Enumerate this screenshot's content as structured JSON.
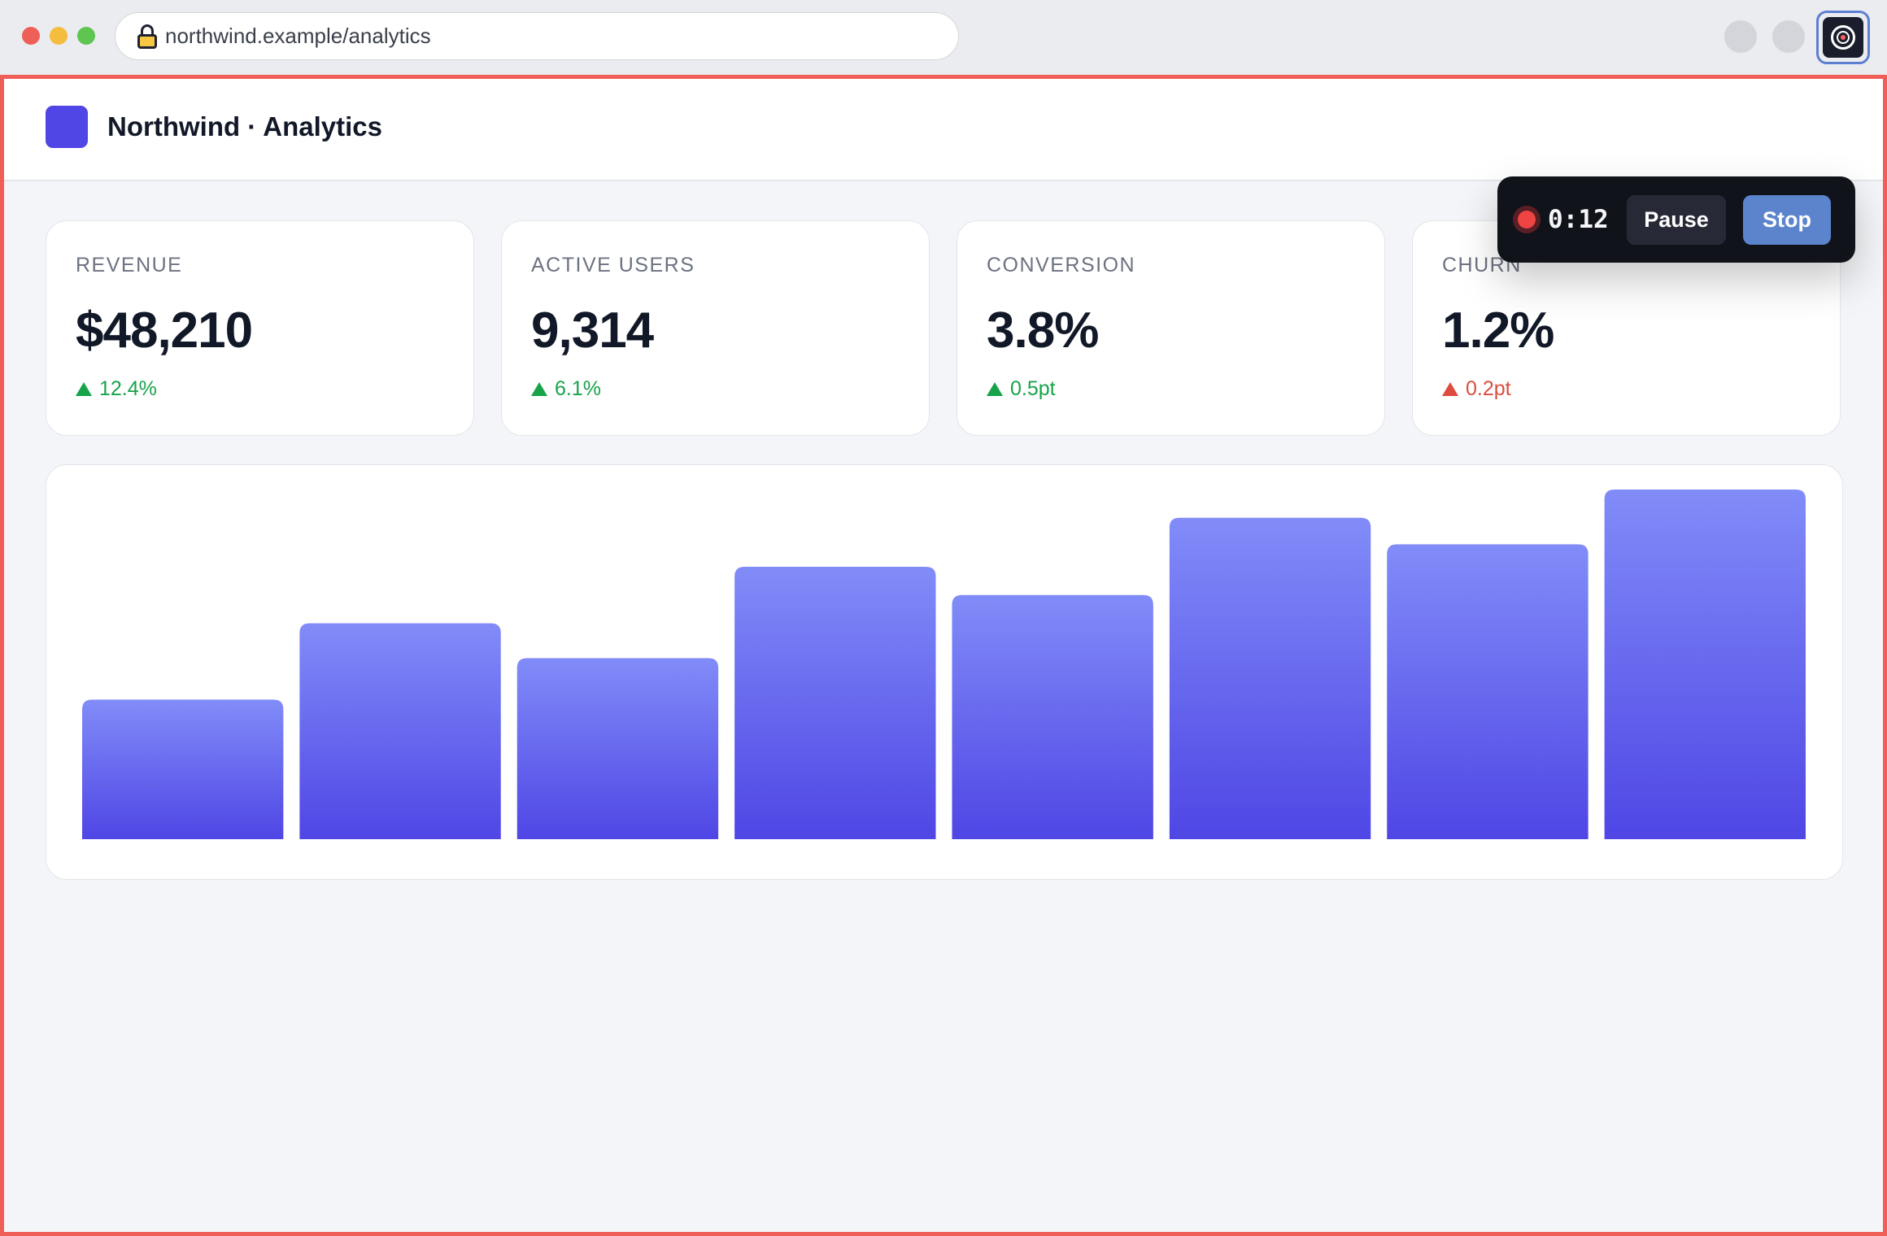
{
  "browser": {
    "url": "northwind.example/analytics"
  },
  "header": {
    "title": "Northwind · Analytics",
    "logo_color": "#4f46e5"
  },
  "kpis": [
    {
      "label": "REVENUE",
      "value": "$48,210",
      "delta": "12.4%",
      "direction": "up",
      "status": "good"
    },
    {
      "label": "ACTIVE USERS",
      "value": "9,314",
      "delta": "6.1%",
      "direction": "up",
      "status": "good"
    },
    {
      "label": "CONVERSION",
      "value": "3.8%",
      "delta": "0.5pt",
      "direction": "up",
      "status": "good"
    },
    {
      "label": "CHURN",
      "value": "1.2%",
      "delta": "0.2pt",
      "direction": "up",
      "status": "bad"
    }
  ],
  "chart_data": {
    "type": "bar",
    "title": "",
    "xlabel": "",
    "ylabel": "",
    "grid": false,
    "values": [
      168,
      260,
      218,
      328,
      294,
      387,
      355,
      421
    ],
    "ylim": [
      0,
      421
    ],
    "color_top": "#818cf8",
    "color_bottom": "#4f46e5"
  },
  "recorder": {
    "time": "0:12",
    "pause_label": "Pause",
    "stop_label": "Stop",
    "status": "recording"
  },
  "colors": {
    "accent": "#4f46e5",
    "positive": "#16a34a",
    "negative": "#dc4c3f",
    "recording_border": "#ef5f57",
    "stop_button": "#5b84cc"
  }
}
